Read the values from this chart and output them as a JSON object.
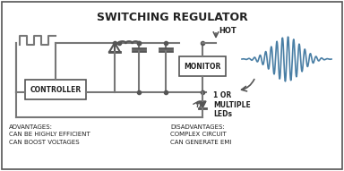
{
  "title": "SWITCHING REGULATOR",
  "title_fontsize": 9,
  "bg_color": "#ffffff",
  "border_color": "#555555",
  "circuit_color": "#777777",
  "box_color": "#aaaaaa",
  "wave_color": "#4a7fa5",
  "text_color": "#222222",
  "advantages_text": "ADVANTAGES:\nCAN BE HIGHLY EFFICIENT\nCAN BOOST VOLTAGES",
  "disadvantages_text": "DISADVANTAGES:\nCOMPLEX CIRCUIT\nCAN GENERATE EMI",
  "hot_label": "HOT",
  "led_label": "1 OR\nMULTIPLE\nLEDs",
  "controller_label": "CONTROLLER",
  "monitor_label": "MONITOR"
}
